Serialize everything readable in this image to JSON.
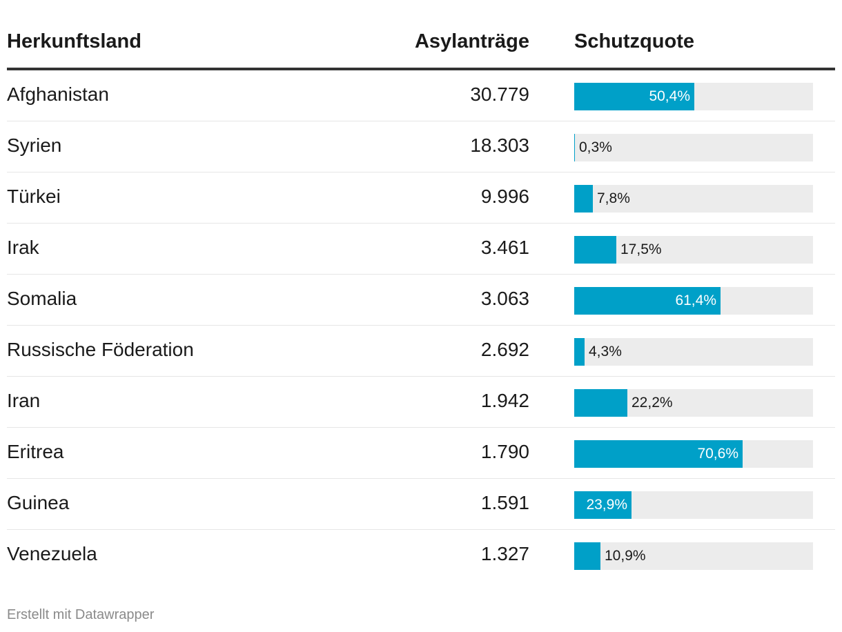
{
  "header": {
    "country": "Herkunftsland",
    "applications": "Asylanträge",
    "quote": "Schutzquote"
  },
  "rows": [
    {
      "country": "Afghanistan",
      "applications": "30.779",
      "quote_label": "50,4%",
      "quote": 50.4
    },
    {
      "country": "Syrien",
      "applications": "18.303",
      "quote_label": "0,3%",
      "quote": 0.3
    },
    {
      "country": "Türkei",
      "applications": "9.996",
      "quote_label": "7,8%",
      "quote": 7.8
    },
    {
      "country": "Irak",
      "applications": "3.461",
      "quote_label": "17,5%",
      "quote": 17.5
    },
    {
      "country": "Somalia",
      "applications": "3.063",
      "quote_label": "61,4%",
      "quote": 61.4
    },
    {
      "country": "Russische Föderation",
      "applications": "2.692",
      "quote_label": "4,3%",
      "quote": 4.3
    },
    {
      "country": "Iran",
      "applications": "1.942",
      "quote_label": "22,2%",
      "quote": 22.2
    },
    {
      "country": "Eritrea",
      "applications": "1.790",
      "quote_label": "70,6%",
      "quote": 70.6
    },
    {
      "country": "Guinea",
      "applications": "1.591",
      "quote_label": "23,9%",
      "quote": 23.9
    },
    {
      "country": "Venezuela",
      "applications": "1.327",
      "quote_label": "10,9%",
      "quote": 10.9
    }
  ],
  "chart_data": {
    "type": "table",
    "title": "",
    "columns": [
      "Herkunftsland",
      "Asylanträge",
      "Schutzquote"
    ],
    "categories": [
      "Afghanistan",
      "Syrien",
      "Türkei",
      "Irak",
      "Somalia",
      "Russische Föderation",
      "Iran",
      "Eritrea",
      "Guinea",
      "Venezuela"
    ],
    "series": [
      {
        "name": "Asylanträge",
        "values": [
          30779,
          18303,
          9996,
          3461,
          3063,
          2692,
          1942,
          1790,
          1591,
          1327
        ]
      },
      {
        "name": "Schutzquote",
        "values": [
          50.4,
          0.3,
          7.8,
          17.5,
          61.4,
          4.3,
          22.2,
          70.6,
          23.9,
          10.9
        ],
        "unit": "%",
        "range": [
          0,
          100
        ]
      }
    ]
  },
  "colors": {
    "bar": "#00a0c8",
    "track": "#ececec",
    "header_rule": "#333333",
    "row_rule": "#e6e6e6"
  },
  "footer": {
    "credit": "Erstellt mit Datawrapper"
  }
}
